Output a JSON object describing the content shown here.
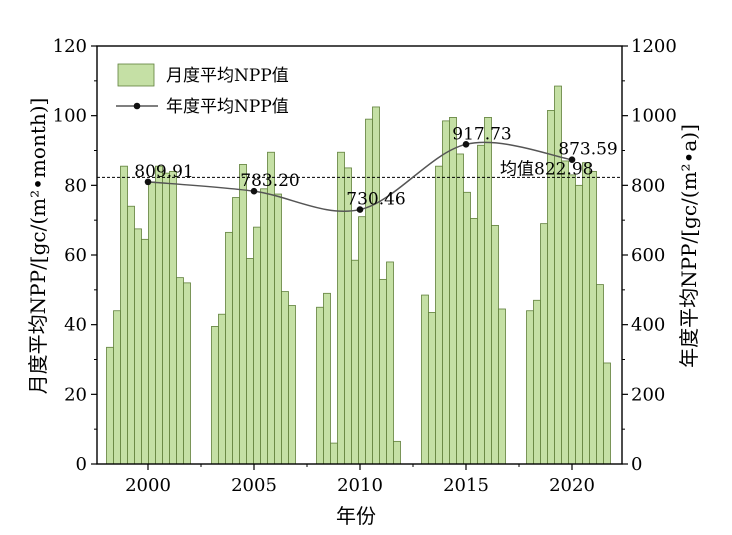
{
  "chart_data": {
    "type": "bar+line",
    "xlabel": "年份",
    "ylabel_left": "月度平均NPP/[gc/(m²•month)]",
    "ylabel_right": "年度平均NPP/[gc/(m²•a)]",
    "ylim_left": [
      0,
      120
    ],
    "ylim_right": [
      0,
      1200
    ],
    "yticks_left": [
      "0",
      "20",
      "40",
      "60",
      "80",
      "100",
      "120"
    ],
    "yticks_right": [
      "0",
      "200",
      "400",
      "600",
      "800",
      "1000",
      "1200"
    ],
    "xticks": [
      "2000",
      "2005",
      "2010",
      "2015",
      "2020"
    ],
    "legend": {
      "position": "top-left",
      "bar_label": "月度平均NPP值",
      "line_label": "年度平均NPP值"
    },
    "colors": {
      "bar_fill": "#c5e0a5",
      "bar_stroke": "#5f7f3a",
      "line": "#555555",
      "marker": "#111111"
    },
    "monthly_groups": [
      {
        "year": 2000,
        "values": [
          33.5,
          44,
          85.5,
          74,
          67.5,
          64.5,
          81,
          85.5,
          83.5,
          84,
          53.5,
          52
        ]
      },
      {
        "year": 2005,
        "values": [
          39.5,
          43,
          66.5,
          76.5,
          86,
          59,
          68,
          79,
          89.5,
          77.5,
          49.5,
          45.5
        ]
      },
      {
        "year": 2010,
        "values": [
          45,
          49,
          6,
          89.5,
          85,
          58.5,
          71,
          99,
          102.5,
          53,
          58,
          6.5
        ]
      },
      {
        "year": 2015,
        "values": [
          48.5,
          43.5,
          85.5,
          98.5,
          99.5,
          89,
          78,
          70.5,
          91.5,
          99.5,
          68.5,
          44.5
        ]
      },
      {
        "year": 2020,
        "values": [
          44,
          47,
          69,
          101.5,
          108.5,
          87,
          83,
          80,
          86.5,
          84,
          51.5,
          29
        ]
      }
    ],
    "annual_points": [
      {
        "year": 2000,
        "value": 809.91,
        "label": "809.91"
      },
      {
        "year": 2005,
        "value": 783.2,
        "label": "783.20"
      },
      {
        "year": 2010,
        "value": 730.46,
        "label": "730.46"
      },
      {
        "year": 2015,
        "value": 917.73,
        "label": "917.73"
      },
      {
        "year": 2020,
        "value": 873.59,
        "label": "873.59"
      }
    ],
    "mean_line": {
      "value": 822.98,
      "label": "均值822.98"
    }
  }
}
